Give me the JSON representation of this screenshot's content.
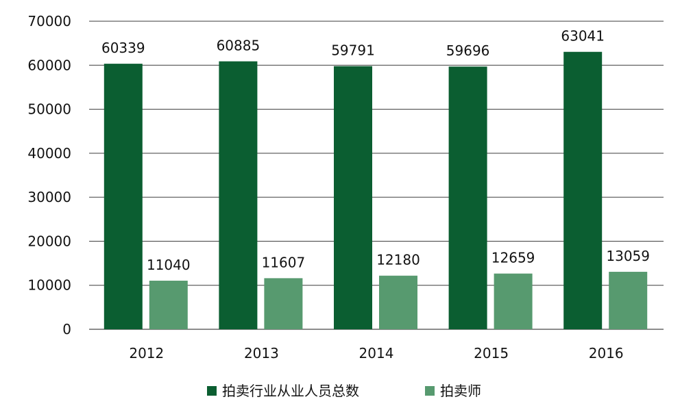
{
  "chart_data": {
    "type": "bar",
    "title": "",
    "xlabel": "",
    "ylabel": "",
    "categories": [
      "2012",
      "2013",
      "2014",
      "2015",
      "2016"
    ],
    "series": [
      {
        "name": "拍卖行业从业人员总数",
        "color": "#0b5e31",
        "values": [
          60339,
          60885,
          59791,
          59696,
          63041
        ]
      },
      {
        "name": "拍卖师",
        "color": "#579a6f",
        "values": [
          11040,
          11607,
          12180,
          12659,
          13059
        ]
      }
    ],
    "ylim": [
      0,
      70000
    ],
    "yticks": [
      0,
      10000,
      20000,
      30000,
      40000,
      50000,
      60000,
      70000
    ],
    "grid": true,
    "legend_position": "bottom",
    "data_labels": true
  }
}
